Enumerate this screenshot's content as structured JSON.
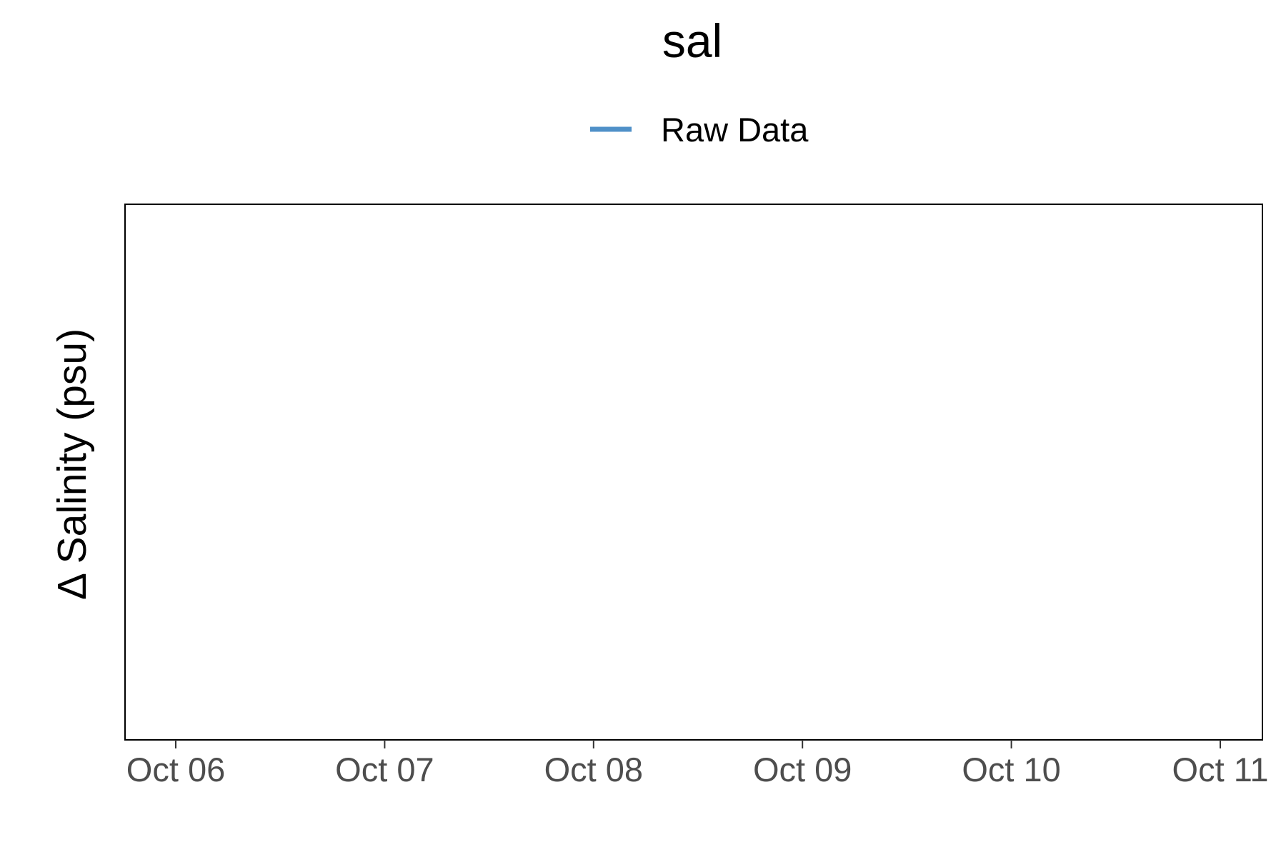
{
  "chart_data": {
    "type": "line",
    "title": "sal",
    "ylabel": "Δ Salinity (psu)",
    "xlabel": "",
    "x_ticks": [
      "Oct 06",
      "Oct 07",
      "Oct 08",
      "Oct 09",
      "Oct 10",
      "Oct 11"
    ],
    "legend": {
      "placement": "top-center",
      "entries": [
        {
          "label": "Raw Data",
          "color": "#4f90c8"
        }
      ]
    },
    "series": [
      {
        "name": "Raw Data",
        "color": "#4f90c8",
        "values": []
      }
    ],
    "grid": false
  }
}
